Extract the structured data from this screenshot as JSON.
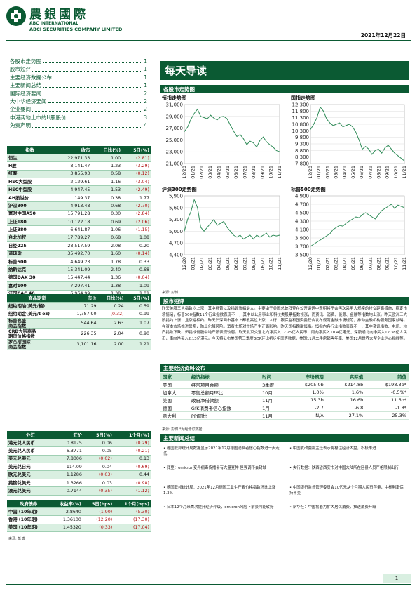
{
  "header": {
    "brand_cn": "農銀國際",
    "brand_en1": "ABC INTERNATIONAL",
    "brand_en2": "ABCI SECURITIES COMPANY LIMITED",
    "date": "2021年12月22日"
  },
  "toc": [
    {
      "label": "各股市走势图",
      "page": "1"
    },
    {
      "label": "股市短评",
      "page": "1"
    },
    {
      "label": "主要经济数据公布",
      "page": "1"
    },
    {
      "label": "主要新闻总结",
      "page": "1"
    },
    {
      "label": "国际经济要闻",
      "page": "2"
    },
    {
      "label": "大中华经济要闻",
      "page": "2"
    },
    {
      "label": "企业要闻",
      "page": "2"
    },
    {
      "label": "中港两地上市的H股股价",
      "page": "3"
    },
    {
      "label": "免责声明",
      "page": "4"
    }
  ],
  "banner": "每天导读",
  "charts_section": "各股市走势图",
  "charts": [
    {
      "title": "恒指走势图",
      "yticks": [
        "31,000",
        "29,000",
        "27,000",
        "25,000",
        "23,000",
        "21,000"
      ],
      "ymin": 21000,
      "ymax": 31000,
      "xticks": [
        "12/20",
        "01/21",
        "02/21",
        "03/21",
        "04/21",
        "05/21",
        "06/21",
        "07/21",
        "08/21",
        "09/21",
        "10/21",
        "11/21"
      ],
      "values": [
        26400,
        27200,
        28500,
        29500,
        30200,
        29000,
        28800,
        28600,
        29200,
        28700,
        28400,
        28900,
        29000,
        28600,
        27500,
        26500,
        25600,
        25900,
        25200,
        24200,
        24800,
        24500,
        23800,
        24900,
        25500,
        24700,
        24200,
        23800,
        23200,
        23000
      ]
    },
    {
      "title": "国指走势图",
      "yticks": [
        "12,300",
        "11,800",
        "11,300",
        "10,800",
        "10,300",
        "9,800",
        "9,300",
        "8,800",
        "8,300",
        "7,800"
      ],
      "ymin": 7800,
      "ymax": 12300,
      "xticks": [
        "12/20",
        "01/21",
        "02/21",
        "03/21",
        "04/21",
        "05/21",
        "06/21",
        "07/21",
        "08/21",
        "09/21",
        "10/21",
        "11/21"
      ],
      "values": [
        10400,
        10800,
        11300,
        12100,
        11800,
        11200,
        10900,
        10700,
        10800,
        10900,
        10600,
        10700,
        10800,
        10600,
        10200,
        9600,
        8900,
        9100,
        8900,
        8500,
        8800,
        8900,
        8600,
        9000,
        9200,
        8900,
        8600,
        8400,
        8200,
        8000
      ]
    },
    {
      "title": "沪深300走势图",
      "yticks": [
        "5,900",
        "5,600",
        "5,300",
        "5,000",
        "4,700",
        "4,400"
      ],
      "ymin": 4400,
      "ymax": 5900,
      "xticks": [
        "12/20",
        "01/21",
        "02/21",
        "03/21",
        "04/21",
        "05/21",
        "06/21",
        "07/21",
        "08/21",
        "09/21",
        "10/21",
        "11/21"
      ],
      "values": [
        5000,
        5300,
        5500,
        5800,
        5600,
        5100,
        5000,
        5100,
        5200,
        5300,
        5150,
        5200,
        5250,
        5100,
        5000,
        4900,
        4850,
        4900,
        4800,
        4850,
        4900,
        4800,
        4900,
        4850,
        4900,
        4950,
        4850,
        4900,
        4880,
        4900
      ]
    },
    {
      "title": "标普500走势图",
      "yticks": [
        "4,900",
        "4,700",
        "4,500",
        "4,300",
        "4,100",
        "3,900",
        "3,700",
        "3,500"
      ],
      "ymin": 3500,
      "ymax": 4900,
      "xticks": [
        "12/20",
        "01/21",
        "02/21",
        "03/21",
        "04/21",
        "05/21",
        "06/21",
        "07/21",
        "08/21",
        "09/21",
        "10/21",
        "11/21"
      ],
      "values": [
        3700,
        3750,
        3800,
        3850,
        3900,
        3950,
        4000,
        4100,
        4150,
        4200,
        4180,
        4250,
        4300,
        4350,
        4400,
        4380,
        4450,
        4500,
        4450,
        4400,
        4350,
        4450,
        4550,
        4600,
        4650,
        4700,
        4600,
        4680,
        4650,
        4620
      ]
    }
  ],
  "chart_source": "来源: 彭博",
  "index_table": {
    "headers": [
      "指数",
      "收市",
      "日比(%)",
      "5日(%)"
    ],
    "rows": [
      [
        "恒生",
        "22,971.33",
        "1.00",
        "(2.81)"
      ],
      [
        "H股",
        "8,141.47",
        "1.23",
        "(3.29)"
      ],
      [
        "红筹",
        "3,855.93",
        "0.58",
        "(0.12)"
      ],
      [
        "HSC大型股",
        "2,129.61",
        "1.16",
        "(3.04)"
      ],
      [
        "HSC中型股",
        "4,947.45",
        "1.53",
        "(2.49)"
      ],
      [
        "AH股溢价",
        "149.37",
        "0.38",
        "1.77"
      ],
      [
        "沪深300",
        "4,913.48",
        "0.68",
        "(2.70)"
      ],
      [
        "富时中国A50",
        "15,791.28",
        "0.30",
        "(2.84)"
      ],
      [
        "上证180",
        "10,122.18",
        "0.69",
        "(2.06)"
      ],
      [
        "上证380",
        "6,641.87",
        "1.06",
        "(1.15)"
      ],
      [
        "台北加权",
        "17,789.27",
        "0.68",
        "1.08"
      ],
      [
        "日经225",
        "28,517.59",
        "2.08",
        "0.20"
      ],
      [
        "道琼斯",
        "35,492.70",
        "1.60",
        "(0.14)"
      ],
      [
        "标普500",
        "4,649.23",
        "1.78",
        "0.33"
      ],
      [
        "纳斯达克",
        "15,341.09",
        "2.40",
        "0.68"
      ],
      [
        "德国DAX 30",
        "15,447.44",
        "1.36",
        "(0.04)"
      ],
      [
        "富时100",
        "7,297.41",
        "1.38",
        "1.09"
      ],
      [
        "法国CAC 40",
        "6,964.99",
        "1.38",
        "1.01"
      ]
    ]
  },
  "commodity_table": {
    "headers": [
      "商品期货",
      "市价",
      "日比(%)",
      "5日(%)"
    ],
    "rows": [
      [
        "纽约期油(美元/桶)",
        "71.29",
        "0.24",
        "0.59"
      ],
      [
        "纽约期金(美元/t oz)",
        "1,787.90",
        "(0.32)",
        "0.99"
      ],
      [
        "标普高盛\n商品指数",
        "544.64",
        "2.63",
        "1.07"
      ],
      [
        "CRB大宗商品\n期货价格指数",
        "226.35",
        "2.04",
        "0.90"
      ],
      [
        "罗杰斯国际\n商品指数",
        "3,101.16",
        "2.00",
        "1.21"
      ]
    ]
  },
  "fx_table": {
    "headers": [
      "外汇",
      "汇价",
      "5日(%)",
      "1个月(%)"
    ],
    "rows": [
      [
        "港元兑人民币",
        "0.8175",
        "0.06",
        "(0.29)"
      ],
      [
        "美元兑人民币",
        "6.3771",
        "0.05",
        "(0.21)"
      ],
      [
        "美元兑港元",
        "7.8006",
        "(0.02)",
        "0.13"
      ],
      [
        "美元兑日元",
        "114.09",
        "0.04",
        "(0.69)"
      ],
      [
        "欧元兑美元",
        "1.1286",
        "(0.03)",
        "0.44"
      ],
      [
        "英镑兑美元",
        "1.3266",
        "0.03",
        "(0.98)"
      ],
      [
        "澳元兑美元",
        "0.7144",
        "(0.35)",
        "(1.12)"
      ]
    ]
  },
  "bond_table": {
    "headers": [
      "政府债券",
      "收益率(%)",
      "5日(bps)",
      "1个月(bps)"
    ],
    "rows": [
      [
        "中国 (10年期)",
        "2.8640",
        "(1.90)",
        "(5.30)"
      ],
      [
        "香港 (10年期)",
        "1.36100",
        "(12.20)",
        "(17.30)"
      ],
      [
        "美国 (10年期)",
        "1.45320",
        "(0.33)",
        "(17.04)"
      ]
    ]
  },
  "left_source": "来源: 彭博",
  "commentary_title": "股市短评",
  "commentary": "昨天美股三大指数均上涨，其中标普以及指数涨幅最大。主要由于美国总统拜登在公开讲话中表明将不会再次采用大规模的社交距离措施，稳定市场情绪，标普500指数11个行业指数表现不一，其中以公用事业和科技类股票指数领涨，而资讯、消费、能源、金融等指数均上涨。昨天欧洲三大股指均上涨，且涨幅相约。昨天沪深两市基本上都收高位上涨：人行、银保监和国资委联合发布规范金融市场规范，推动金融机构服务国家战略，在资本市场推进联系，防止化解风险。消费市场对市场产生正面影响。昨天国指跑赢恒指。恒指内各行业指数表现不一，其中资讯指数、电讯、地产指数下跌。恒指成份股中地产股表现较弱。昨天北京交通北向净买入12.25亿人民币，南向净买入10.4亿港元；深股通北向净买入12.38亿人民币，南向净买入2.13亿港元。今天将公布美国第三季度GDP环比初步年率等数据，美国11月二手房销售年率、美国12月世界大型企业信心指数等。",
  "econ_section": "主要经济资料公布",
  "econ_table": {
    "headers": [
      "国家",
      "经济指标",
      "时间",
      "市场预期",
      "实际值",
      "前值"
    ],
    "rows": [
      [
        "美国",
        "经常项目余额",
        "3季度",
        "-$205.0b",
        "-$214.8b",
        "-$198.3b*"
      ],
      [
        "加拿大",
        "零售总额月环比",
        "10月",
        "1.0%",
        "1.6%",
        "-0.5%*"
      ],
      [
        "美国",
        "政府净借款额",
        "11月",
        "15.3b",
        "16.6b",
        "11.6b*"
      ],
      [
        "德国",
        "GfK消费者信心指数",
        "1月",
        "-2.7",
        "-6.8",
        "-1.8*"
      ],
      [
        "意大利",
        "PPI同比",
        "11月",
        "N/A",
        "27.1%",
        "25.3%"
      ]
    ]
  },
  "econ_source": "来源: 彭博   *为经修订数据",
  "news_section": "主要新闻总结",
  "news": [
    "德国联邦统计局数据显示2021年12月德国消费者信心指数进一步走低",
    "中国发改委副主任表示将稳住经济大盘，积极推进",
    "拜登：omicron变异病毒传播会有大量变种 但强调不会封城",
    "央行数据：陕西省西安市对中国大陆所在区县人员严格限制出行",
    "德国联邦统计局：2021年12月德国工业生产者价格指数环比上涨1.3%",
    "中国银行监督管理委员会10亿元从个月期人民币存量，中标利率保持不变",
    "日本12个月来首次提升经济评级，omicron风险下前景可能转好",
    "新华社：中国将着力扩大居民消费，推进消费升级"
  ],
  "page": "1"
}
